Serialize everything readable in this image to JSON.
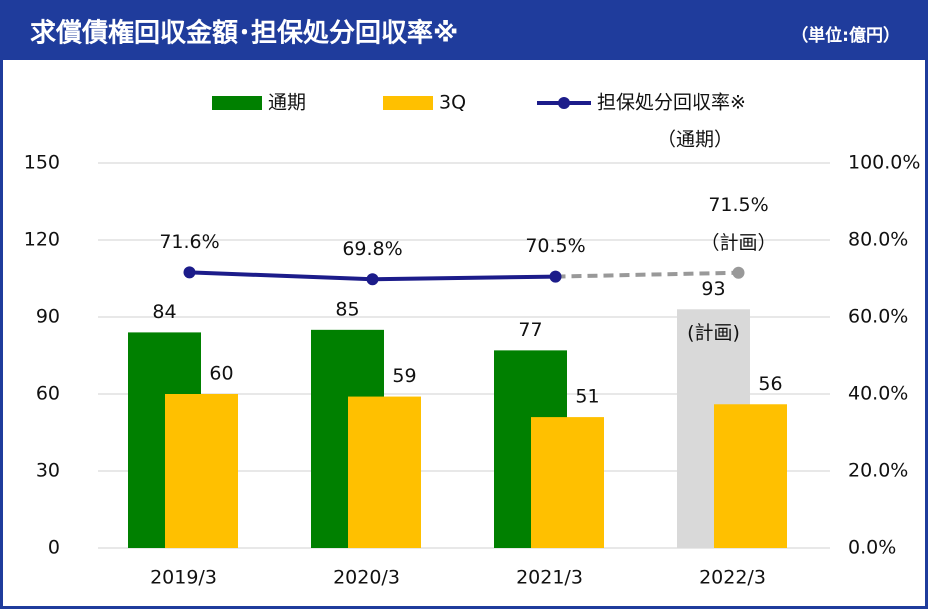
{
  "chart_data": {
    "type": "bar_line",
    "title": "求償債権回収金額･担保処分回収率※",
    "unit": "（単位:億円）",
    "categories": [
      "2019/3",
      "2020/3",
      "2021/3",
      "2022/3"
    ],
    "series": [
      {
        "name": "通期",
        "type": "bar",
        "color": "#008000",
        "colors": [
          "#008000",
          "#008000",
          "#008000",
          "#d9d9d9"
        ],
        "values": [
          84,
          85,
          77,
          93
        ]
      },
      {
        "name": "3Q",
        "type": "bar",
        "color": "#ffc000",
        "values": [
          60,
          59,
          51,
          56
        ]
      },
      {
        "name": "担保処分回収率※",
        "type": "line",
        "axis": "y2",
        "color": "#1c1c8a",
        "forecast_color": "#999999",
        "values": [
          71.6,
          69.8,
          70.5,
          71.5
        ],
        "value_labels": [
          "71.6%",
          "69.8%",
          "70.5%",
          "71.5%"
        ]
      }
    ],
    "legend_note": "（通期）",
    "annotations": [
      {
        "series": 0,
        "index": 3,
        "text": "(計画)"
      },
      {
        "series": 2,
        "index": 3,
        "text": "（計画）"
      }
    ],
    "ylim": [
      0,
      150
    ],
    "yticks": [
      0,
      30,
      60,
      90,
      120,
      150
    ],
    "y2lim": [
      0,
      100
    ],
    "y2ticks": [
      {
        "value": 0,
        "label": "0.0%"
      },
      {
        "value": 20,
        "label": "20.0%"
      },
      {
        "value": 40,
        "label": "40.0%"
      },
      {
        "value": 60,
        "label": "60.0%"
      },
      {
        "value": 80,
        "label": "80.0%"
      },
      {
        "value": 100,
        "label": "100.0%"
      }
    ],
    "grid": true,
    "legend": "top"
  }
}
